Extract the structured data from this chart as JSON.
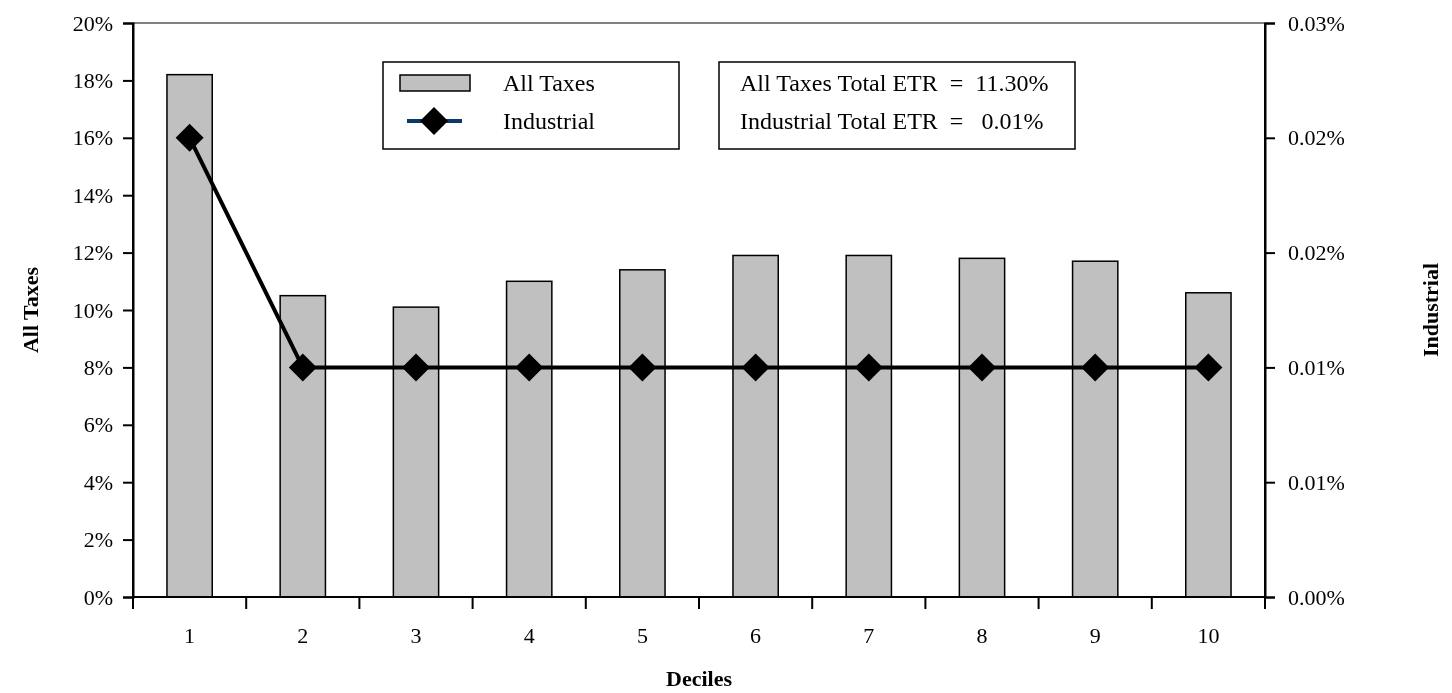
{
  "chart_data": {
    "type": "bar",
    "xlabel": "Deciles",
    "ylabel": "All Taxes",
    "y2label": "Industrial",
    "categories": [
      "1",
      "2",
      "3",
      "4",
      "5",
      "6",
      "7",
      "8",
      "9",
      "10"
    ],
    "series": [
      {
        "name": "All Taxes",
        "type": "bar",
        "color": "#c0c0c0",
        "values": [
          18.2,
          10.5,
          10.1,
          11.0,
          11.4,
          11.9,
          11.9,
          11.8,
          11.7,
          10.6
        ]
      },
      {
        "name": "Industrial",
        "type": "line",
        "axis": "y2",
        "color": "#000000",
        "marker": "diamond",
        "values": [
          0.024,
          0.012,
          0.012,
          0.012,
          0.012,
          0.012,
          0.012,
          0.012,
          0.012,
          0.012
        ]
      }
    ],
    "ylim": [
      0,
      20
    ],
    "yticks": [
      {
        "value": 0,
        "label": "0%"
      },
      {
        "value": 2,
        "label": "2%"
      },
      {
        "value": 4,
        "label": "4%"
      },
      {
        "value": 6,
        "label": "6%"
      },
      {
        "value": 8,
        "label": "8%"
      },
      {
        "value": 10,
        "label": "10%"
      },
      {
        "value": 12,
        "label": "12%"
      },
      {
        "value": 14,
        "label": "14%"
      },
      {
        "value": 16,
        "label": "16%"
      },
      {
        "value": 18,
        "label": "18%"
      },
      {
        "value": 20,
        "label": "20%"
      }
    ],
    "y2lim": [
      0,
      0.03
    ],
    "y2ticks": [
      {
        "value": 0,
        "label": "0.00%"
      },
      {
        "value": 0.006,
        "label": "0.01%"
      },
      {
        "value": 0.012,
        "label": "0.01%"
      },
      {
        "value": 0.018,
        "label": "0.02%"
      },
      {
        "value": 0.024,
        "label": "0.02%"
      },
      {
        "value": 0.03,
        "label": "0.03%"
      }
    ],
    "annotations": [
      "All Taxes Total ETR  =  11.30%",
      "Industrial Total ETR  =   0.01%"
    ],
    "legend": "top",
    "grid": false
  }
}
